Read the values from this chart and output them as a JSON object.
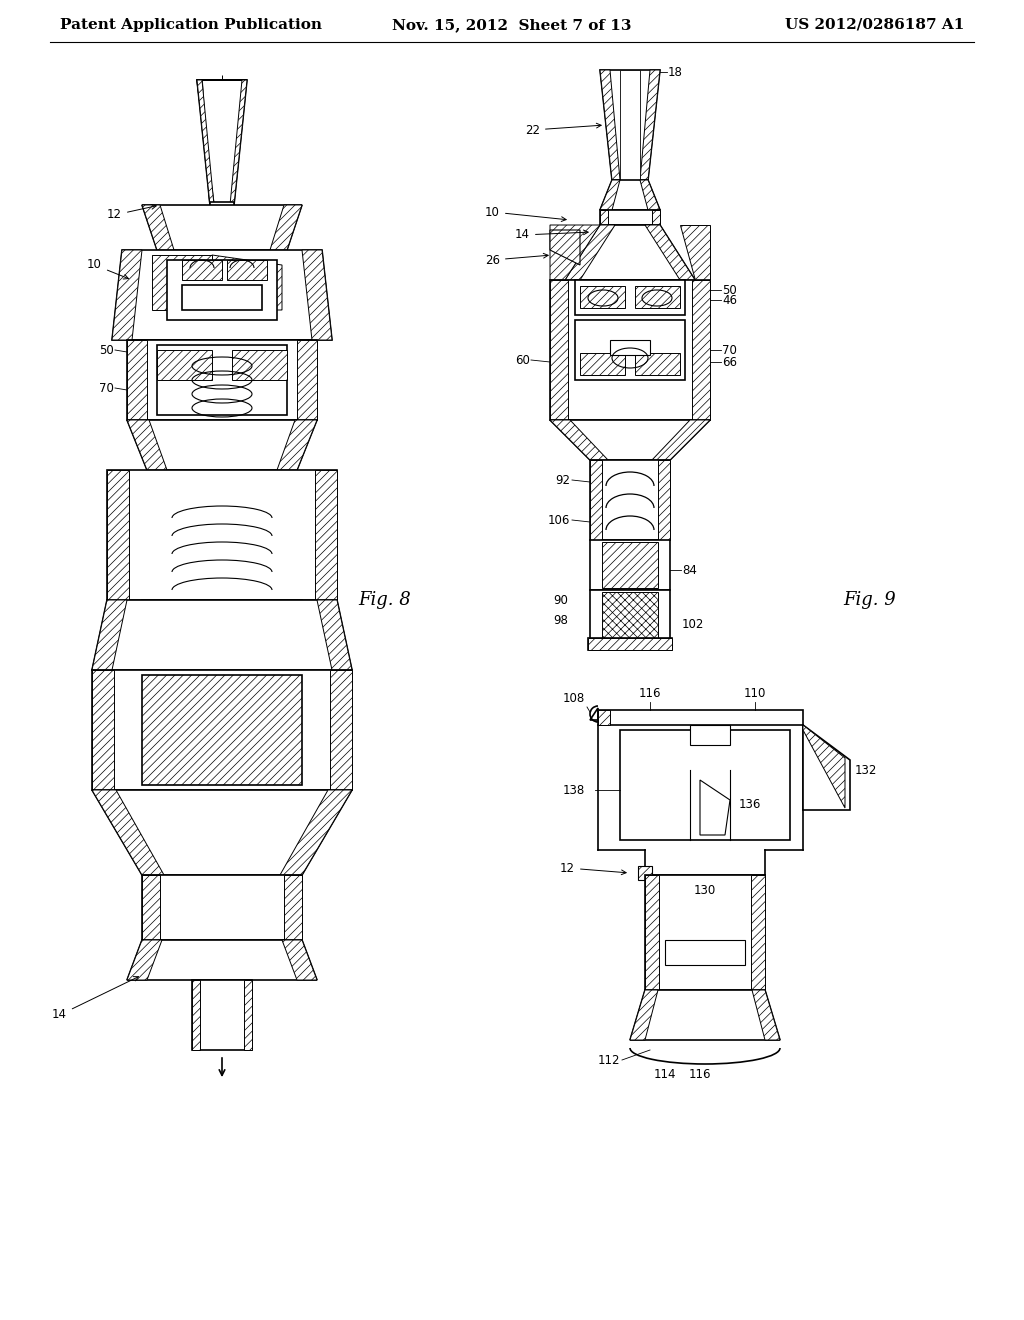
{
  "background_color": "#ffffff",
  "header_left": "Patent Application Publication",
  "header_center": "Nov. 15, 2012  Sheet 7 of 13",
  "header_right": "US 2012/0286187 A1",
  "header_fontsize": 11,
  "header_fontweight": "bold",
  "fig8_label": "Fig. 8",
  "fig9_label": "Fig. 9",
  "line_color": "#000000",
  "linewidth": 1.2,
  "thin_lw": 0.7,
  "hatch_lw": 0.5
}
